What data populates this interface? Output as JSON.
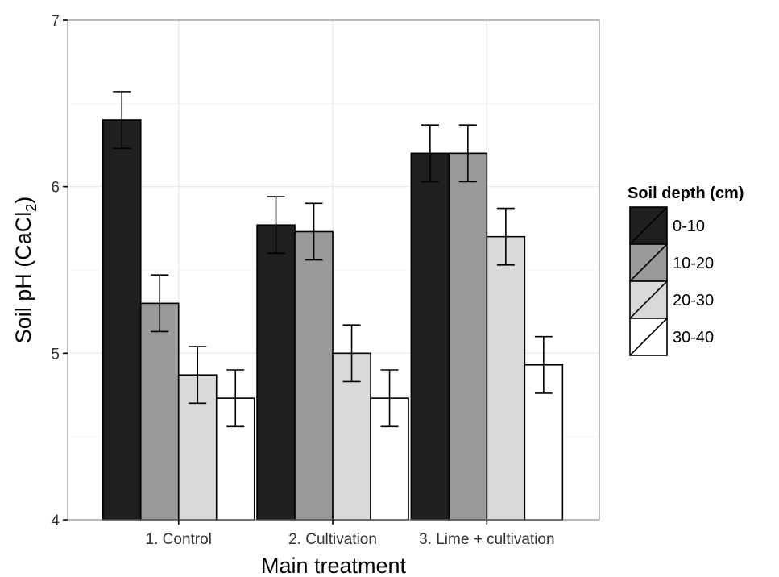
{
  "chart_data": {
    "type": "bar",
    "xlabel": "Main treatment",
    "ylabel": "Soil pH (CaCl",
    "ylabel_subscript": "2",
    "ylabel_suffix": ")",
    "categories": [
      "1. Control",
      "2. Cultivation",
      "3. Lime + cultivation"
    ],
    "ylim": [
      4,
      7
    ],
    "yticks": [
      4,
      5,
      6,
      7
    ],
    "grid": true,
    "legend": {
      "title": "Soil depth (cm)",
      "placement": "right"
    },
    "series": [
      {
        "name": "0-10",
        "color": "#1f1f1f",
        "values": [
          6.4,
          5.77,
          6.2
        ],
        "errors": [
          0.17,
          0.17,
          0.17
        ]
      },
      {
        "name": "10-20",
        "color": "#999999",
        "values": [
          5.3,
          5.73,
          6.2
        ],
        "errors": [
          0.17,
          0.17,
          0.17
        ]
      },
      {
        "name": "20-30",
        "color": "#d9d9d9",
        "values": [
          4.87,
          5.0,
          5.7
        ],
        "errors": [
          0.17,
          0.17,
          0.17
        ]
      },
      {
        "name": "30-40",
        "color": "#ffffff",
        "values": [
          4.73,
          4.73,
          4.93
        ],
        "errors": [
          0.17,
          0.17,
          0.17
        ]
      }
    ]
  }
}
